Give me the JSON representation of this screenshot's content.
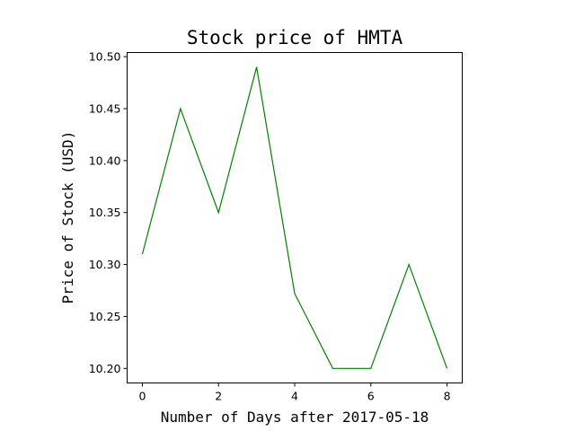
{
  "chart_data": {
    "type": "line",
    "title": "Stock price of HMTA",
    "xlabel": "Number of Days after 2017-05-18",
    "ylabel": "Price of Stock (USD)",
    "x": [
      0,
      1,
      2,
      3,
      4,
      5,
      6,
      7,
      8
    ],
    "series": [
      {
        "values": [
          10.31,
          10.45,
          10.35,
          10.49,
          10.272,
          10.2,
          10.2,
          10.3,
          10.2
        ],
        "color": "#008000"
      }
    ],
    "xlim": [
      -0.4,
      8.4
    ],
    "ylim": [
      10.186,
      10.504
    ],
    "xticks": [
      0,
      2,
      4,
      6,
      8
    ],
    "xtick_labels": [
      "0",
      "2",
      "4",
      "6",
      "8"
    ],
    "yticks": [
      10.2,
      10.25,
      10.3,
      10.35,
      10.4,
      10.45,
      10.5
    ],
    "ytick_labels": [
      "10.20",
      "10.25",
      "10.30",
      "10.35",
      "10.40",
      "10.45",
      "10.50"
    ],
    "grid": false,
    "legend": false
  }
}
